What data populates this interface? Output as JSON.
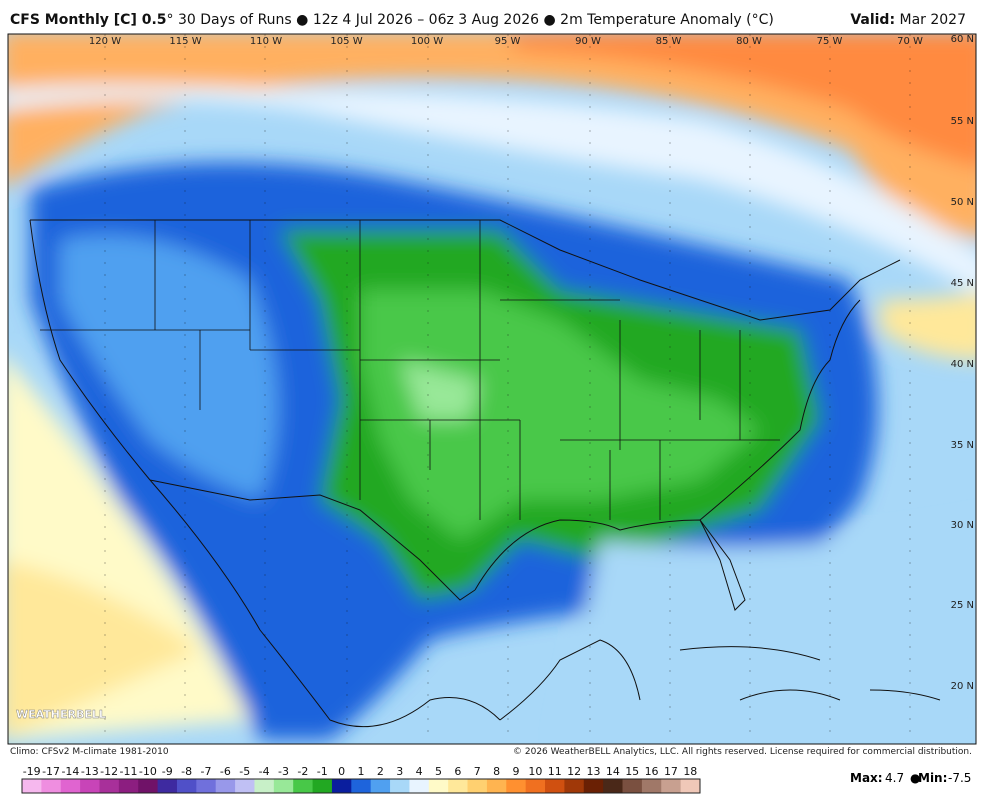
{
  "header": {
    "title_bold": "CFS Monthly [C] 0.5",
    "title_rest": "° 30 Days of Runs ● 12z 4 Jul 2026 – 06z 3 Aug 2026 ● 2m Temperature Anomaly (°C)",
    "valid_label": "Valid:",
    "valid_value": "Mar 2027"
  },
  "map": {
    "lon_labels": [
      "120 W",
      "115 W",
      "110 W",
      "105 W",
      "100 W",
      "95 W",
      "90 W",
      "85 W",
      "80 W",
      "75 W",
      "70 W"
    ],
    "lat_labels": [
      "60 N",
      "55 N",
      "50 N",
      "45 N",
      "40 N",
      "35 N",
      "30 N",
      "25 N",
      "20 N"
    ],
    "logo": "WEATHERBELL"
  },
  "footer": {
    "climo": "Climo: CFSv2 M-climate 1981-2010",
    "copyright": "© 2026 WeatherBELL Analytics, LLC. All rights reserved. License required for commercial distribution.",
    "max_label": "Max:",
    "max_value": 4.7,
    "min_label": "Min:",
    "min_value": -7.5
  },
  "colorbar": {
    "labels": [
      -19,
      -17,
      -14,
      -13,
      -12,
      -11,
      -10,
      -9,
      -8,
      -7,
      -6,
      -5,
      -4,
      -3,
      -2,
      -1,
      0,
      1,
      2,
      3,
      4,
      5,
      6,
      7,
      8,
      9,
      10,
      11,
      12,
      13,
      14,
      15,
      16,
      17,
      18
    ],
    "colors": [
      "#f6b8ee",
      "#ef8ee0",
      "#e064d0",
      "#c844b8",
      "#a8309a",
      "#8c1e80",
      "#701268",
      "#3e2aa0",
      "#5050c8",
      "#7070dc",
      "#9898ea",
      "#c0c0f4",
      "#c8f0c8",
      "#98e898",
      "#48c848",
      "#22a822",
      "#0a1e9e",
      "#1e64dc",
      "#50a0f0",
      "#a8d8f8",
      "#e8f4ff",
      "#fffac8",
      "#ffe89a",
      "#ffd070",
      "#ffb450",
      "#ff9030",
      "#f07020",
      "#d05010",
      "#a03808",
      "#6a2004",
      "#4a2818",
      "#7a5040",
      "#a07868",
      "#c8a090",
      "#f0c8b8"
    ]
  }
}
